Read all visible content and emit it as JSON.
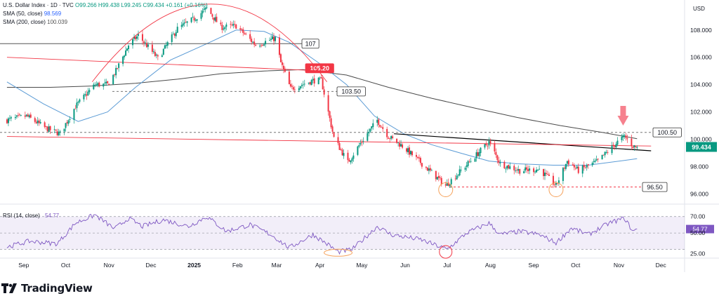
{
  "header": {
    "symbol_line": "U.S. Dollar Index · 1D · TVC",
    "ohlc": "O99.266 H99.438 L99.245 C99.434 +0.161 (+0.16%)",
    "sma50_label": "SMA (50, close)",
    "sma50_value": "98.569",
    "sma200_label": "SMA (200, close)",
    "sma200_value": "100.039"
  },
  "brand": {
    "name": "TradingView",
    "logo_icon": "tradingview-logo-icon"
  },
  "colors": {
    "up": "#089981",
    "down": "#f23645",
    "sma50": "#5b9bd5",
    "sma200": "#4a4a4a",
    "rsi": "#7e57c2",
    "red_line": "#f23645",
    "marker": "#f5a15a"
  },
  "chart_data": {
    "type": "candlestick",
    "currency_label": "USD",
    "y_ticks": [
      "108.000",
      "106.000",
      "104.000",
      "102.000",
      "100.000",
      "98.000",
      "96.000"
    ],
    "ylim": [
      95.4,
      110.2
    ],
    "x_labels": [
      "Sep",
      "Oct",
      "Nov",
      "Dec",
      "2025",
      "Feb",
      "Mar",
      "Apr",
      "May",
      "Jun",
      "Jul",
      "Aug",
      "Sep",
      "Oct",
      "Nov",
      "Dec"
    ],
    "months_start": "2024-09",
    "last_price_label": "99.434",
    "levels": [
      {
        "label": "107",
        "value": 107,
        "style": "solid-dark"
      },
      {
        "label": "105.20",
        "value": 105.2,
        "style": "solid-red"
      },
      {
        "label": "103.50",
        "value": 103.5,
        "style": "dashed"
      },
      {
        "label": "100.50",
        "value": 100.5,
        "style": "dashed"
      },
      {
        "label": "96.50",
        "value": 96.5,
        "style": "dashed-red"
      }
    ],
    "price_path": [
      [
        "2024-08-20",
        101.4
      ],
      [
        "2024-09-03",
        101.7
      ],
      [
        "2024-09-17",
        100.8
      ],
      [
        "2024-09-27",
        100.4
      ],
      [
        "2024-10-08",
        102.4
      ],
      [
        "2024-10-22",
        104.0
      ],
      [
        "2024-10-31",
        104.0
      ],
      [
        "2024-11-06",
        105.0
      ],
      [
        "2024-11-15",
        106.9
      ],
      [
        "2024-11-22",
        107.6
      ],
      [
        "2024-12-06",
        105.9
      ],
      [
        "2024-12-20",
        108.1
      ],
      [
        "2025-01-02",
        108.9
      ],
      [
        "2025-01-10",
        109.6
      ],
      [
        "2025-01-20",
        108.2
      ],
      [
        "2025-01-31",
        108.3
      ],
      [
        "2025-02-14",
        106.9
      ],
      [
        "2025-02-28",
        107.4
      ],
      [
        "2025-03-04",
        105.6
      ],
      [
        "2025-03-11",
        103.7
      ],
      [
        "2025-03-27",
        104.3
      ],
      [
        "2025-04-02",
        104.3
      ],
      [
        "2025-04-11",
        100.1
      ],
      [
        "2025-04-21",
        98.3
      ],
      [
        "2025-04-30",
        99.7
      ],
      [
        "2025-05-12",
        101.4
      ],
      [
        "2025-05-20",
        100.2
      ],
      [
        "2025-05-30",
        99.5
      ],
      [
        "2025-06-12",
        98.3
      ],
      [
        "2025-06-30",
        96.6
      ],
      [
        "2025-07-10",
        97.6
      ],
      [
        "2025-07-31",
        99.8
      ],
      [
        "2025-08-08",
        98.2
      ],
      [
        "2025-08-22",
        97.7
      ],
      [
        "2025-09-05",
        97.8
      ],
      [
        "2025-09-17",
        96.6
      ],
      [
        "2025-09-25",
        98.4
      ],
      [
        "2025-10-03",
        97.7
      ],
      [
        "2025-10-17",
        98.4
      ],
      [
        "2025-10-31",
        99.8
      ],
      [
        "2025-11-05",
        100.2
      ],
      [
        "2025-11-11",
        99.5
      ],
      [
        "2025-11-14",
        99.43
      ]
    ],
    "sma50_path": [
      [
        "2024-08-20",
        104.2
      ],
      [
        "2024-09-15",
        102.6
      ],
      [
        "2024-10-10",
        101.3
      ],
      [
        "2024-10-31",
        102.0
      ],
      [
        "2024-11-20",
        103.8
      ],
      [
        "2024-12-15",
        105.8
      ],
      [
        "2025-01-10",
        107.0
      ],
      [
        "2025-01-31",
        108.0
      ],
      [
        "2025-02-20",
        107.9
      ],
      [
        "2025-03-10",
        107.1
      ],
      [
        "2025-03-31",
        105.6
      ],
      [
        "2025-04-20",
        104.0
      ],
      [
        "2025-05-10",
        101.7
      ],
      [
        "2025-05-31",
        100.4
      ],
      [
        "2025-06-20",
        99.6
      ],
      [
        "2025-07-10",
        99.0
      ],
      [
        "2025-07-31",
        98.4
      ],
      [
        "2025-08-20",
        98.2
      ],
      [
        "2025-09-15",
        98.1
      ],
      [
        "2025-10-10",
        98.1
      ],
      [
        "2025-11-14",
        98.57
      ]
    ],
    "sma200_path": [
      [
        "2024-08-20",
        103.8
      ],
      [
        "2024-09-20",
        103.8
      ],
      [
        "2024-10-20",
        103.9
      ],
      [
        "2024-11-20",
        104.1
      ],
      [
        "2024-12-20",
        104.4
      ],
      [
        "2025-01-20",
        104.8
      ],
      [
        "2025-02-20",
        105.0
      ],
      [
        "2025-03-20",
        105.1
      ],
      [
        "2025-04-20",
        104.7
      ],
      [
        "2025-05-20",
        103.8
      ],
      [
        "2025-06-20",
        103.0
      ],
      [
        "2025-07-20",
        102.3
      ],
      [
        "2025-08-20",
        101.6
      ],
      [
        "2025-09-20",
        101.0
      ],
      [
        "2025-10-20",
        100.5
      ],
      [
        "2025-11-14",
        100.04
      ]
    ],
    "trendlines": [
      {
        "from": [
          "2025-05-24",
          100.4
        ],
        "to": [
          "2025-11-24",
          99.15
        ],
        "color": "#000000"
      },
      {
        "from": [
          "2024-08-20",
          106.0
        ],
        "to": [
          "2025-04-04",
          105.0
        ],
        "color": "#f23645"
      },
      {
        "from": [
          "2024-08-20",
          100.2
        ],
        "to": [
          "2025-11-24",
          99.5
        ],
        "color": "#f23645"
      }
    ],
    "arc": {
      "from": [
        "2024-10-20",
        104.2
      ],
      "peak": [
        "2025-01-13",
        109.9
      ],
      "to": [
        "2025-04-06",
        104.2
      ]
    },
    "down_arrow_at": [
      "2025-11-04",
      101.0
    ],
    "circles": [
      [
        "2025-06-30",
        96.3
      ],
      [
        "2025-09-17",
        96.3
      ]
    ],
    "rsi": {
      "label": "RSI (14, close)",
      "value_label": "54.77",
      "y_ticks": [
        "70.00",
        "50.00",
        "25.00"
      ],
      "ylim": [
        22,
        80
      ],
      "band": [
        30,
        70
      ],
      "path": [
        [
          "2024-08-20",
          33
        ],
        [
          "2024-09-05",
          40
        ],
        [
          "2024-09-25",
          37
        ],
        [
          "2024-10-08",
          62
        ],
        [
          "2024-10-22",
          72
        ],
        [
          "2024-11-05",
          55
        ],
        [
          "2024-11-15",
          68
        ],
        [
          "2024-11-25",
          58
        ],
        [
          "2024-12-10",
          66
        ],
        [
          "2024-12-28",
          58
        ],
        [
          "2025-01-10",
          70
        ],
        [
          "2025-01-24",
          52
        ],
        [
          "2025-02-10",
          60
        ],
        [
          "2025-02-25",
          48
        ],
        [
          "2025-03-10",
          32
        ],
        [
          "2025-03-27",
          48
        ],
        [
          "2025-04-05",
          38
        ],
        [
          "2025-04-14",
          27
        ],
        [
          "2025-04-24",
          30
        ],
        [
          "2025-05-12",
          58
        ],
        [
          "2025-05-22",
          48
        ],
        [
          "2025-06-12",
          42
        ],
        [
          "2025-07-01",
          30
        ],
        [
          "2025-07-15",
          50
        ],
        [
          "2025-07-31",
          62
        ],
        [
          "2025-08-08",
          48
        ],
        [
          "2025-08-22",
          52
        ],
        [
          "2025-09-05",
          48
        ],
        [
          "2025-09-17",
          38
        ],
        [
          "2025-09-28",
          56
        ],
        [
          "2025-10-10",
          48
        ],
        [
          "2025-10-25",
          62
        ],
        [
          "2025-11-05",
          68
        ],
        [
          "2025-11-11",
          52
        ],
        [
          "2025-11-14",
          54.77
        ]
      ],
      "circles": [
        [
          "2025-04-14",
          26
        ],
        [
          "2025-06-30",
          27
        ]
      ]
    }
  }
}
